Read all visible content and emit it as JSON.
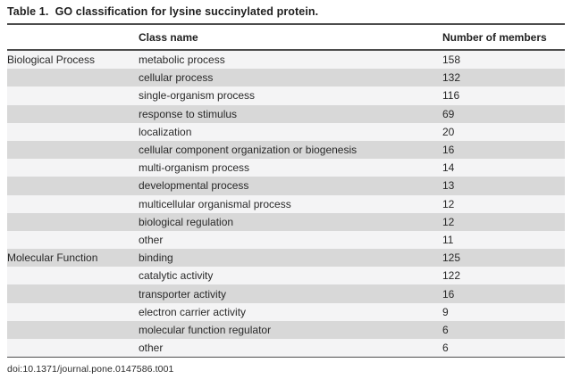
{
  "title": "Table 1.  GO classification for lysine succinylated protein.",
  "columns": {
    "group": "",
    "class_name": "Class name",
    "members": "Number of members"
  },
  "rows": [
    {
      "group": "Biological Process",
      "class_name": "metabolic process",
      "members": "158"
    },
    {
      "group": "",
      "class_name": "cellular process",
      "members": "132"
    },
    {
      "group": "",
      "class_name": "single-organism process",
      "members": "116"
    },
    {
      "group": "",
      "class_name": "response to stimulus",
      "members": "69"
    },
    {
      "group": "",
      "class_name": "localization",
      "members": "20"
    },
    {
      "group": "",
      "class_name": "cellular component organization or biogenesis",
      "members": "16"
    },
    {
      "group": "",
      "class_name": "multi-organism process",
      "members": "14"
    },
    {
      "group": "",
      "class_name": "developmental process",
      "members": "13"
    },
    {
      "group": "",
      "class_name": "multicellular organismal process",
      "members": "12"
    },
    {
      "group": "",
      "class_name": "biological regulation",
      "members": "12"
    },
    {
      "group": "",
      "class_name": "other",
      "members": "11"
    },
    {
      "group": "Molecular Function",
      "class_name": "binding",
      "members": "125"
    },
    {
      "group": "",
      "class_name": "catalytic activity",
      "members": "122"
    },
    {
      "group": "",
      "class_name": "transporter activity",
      "members": "16"
    },
    {
      "group": "",
      "class_name": "electron carrier activity",
      "members": "9"
    },
    {
      "group": "",
      "class_name": "molecular function regulator",
      "members": "6"
    },
    {
      "group": "",
      "class_name": "other",
      "members": "6"
    }
  ],
  "footer": {
    "doi": "doi:10.1371/journal.pone.0147586.t001"
  },
  "colors": {
    "row_light": "#f4f4f5",
    "row_dark": "#d8d8d8",
    "rule": "#4d4d4d"
  }
}
